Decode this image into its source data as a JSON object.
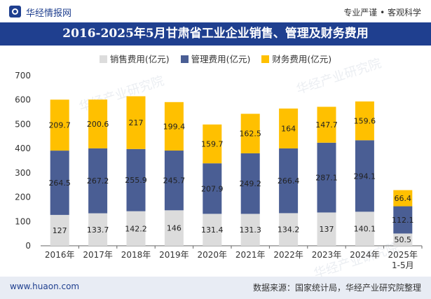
{
  "header": {
    "brand": "华经情报网",
    "slogan": "专业严谨 • 客观科学"
  },
  "footer": {
    "website": "www.huaon.com",
    "source": "数据来源：国家统计局，华经产业研究院整理"
  },
  "watermark": {
    "text": "华经产业研究院"
  },
  "colors": {
    "selling": "#dcdcdc",
    "admin": "#4a5e94",
    "finance": "#ffc000",
    "brand": "#1f3f8f"
  },
  "chart_data": {
    "type": "bar",
    "stacked": true,
    "title": "2016-2025年5月甘肃省工业企业销售、管理及财务费用",
    "categories": [
      "2016年",
      "2017年",
      "2018年",
      "2019年",
      "2020年",
      "2021年",
      "2022年",
      "2023年",
      "2024年",
      "2025年\n1-5月"
    ],
    "series": [
      {
        "name": "销售费用(亿元)",
        "values": [
          127,
          133.7,
          142.2,
          146,
          131.4,
          131.3,
          134.2,
          137,
          140.1,
          50.5
        ]
      },
      {
        "name": "管理费用(亿元)",
        "values": [
          264.5,
          267.2,
          255.9,
          245.7,
          207.9,
          249.2,
          266.4,
          287.1,
          294.1,
          112.1
        ]
      },
      {
        "name": "财务费用(亿元)",
        "values": [
          209.7,
          200.6,
          217,
          199.4,
          159.7,
          162.5,
          164,
          147.7,
          159.6,
          66.4
        ]
      }
    ],
    "labels": [
      [
        "127",
        "133.7",
        "142.2",
        "146",
        "131.4",
        "131.3",
        "134.2",
        "137",
        "140.1",
        "50.5"
      ],
      [
        "264.5",
        "267.2",
        "255.9",
        "245.7",
        "207.9",
        "249.2",
        "266.4",
        "287.1",
        "294.1",
        "112.1"
      ],
      [
        "209.7",
        "200.6",
        "217",
        "199.4",
        "159.7",
        "162.5",
        "164",
        "147.7",
        "159.6",
        "66.4"
      ]
    ],
    "ylim": [
      0,
      700
    ],
    "yticks": [
      0,
      100,
      200,
      300,
      400,
      500,
      600,
      700
    ],
    "legend_position": "top-center"
  }
}
